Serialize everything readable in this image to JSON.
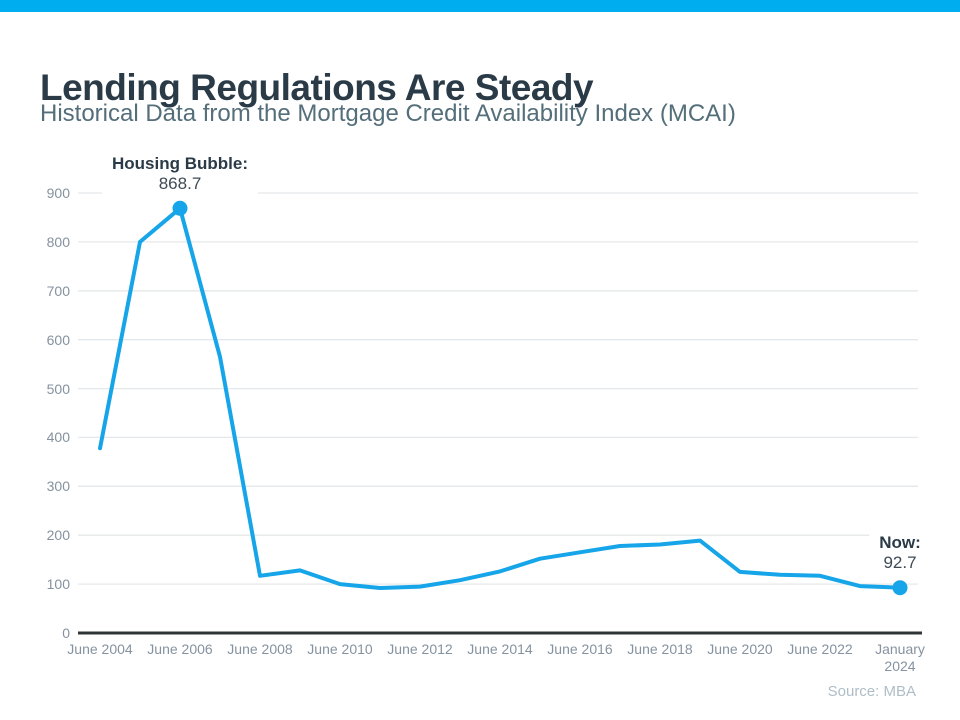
{
  "page": {
    "title": "Lending Regulations Are Steady",
    "subtitle": "Historical Data from the Mortgage Credit Availability Index (MCAI)",
    "source_note": "Source: MBA",
    "accent_bar_color": "#00AEEF"
  },
  "chart_data": {
    "type": "line",
    "title": "Mortgage Credit Availability Index (MCAI)",
    "line_color": "#16A5E9",
    "grid": true,
    "legend": "none",
    "ylim": [
      0,
      900
    ],
    "y_ticks": [
      0,
      100,
      200,
      300,
      400,
      500,
      600,
      700,
      800,
      900
    ],
    "categories": [
      "June 2004",
      "June 2006",
      "June 2008",
      "June 2010",
      "June 2012",
      "June 2014",
      "June 2016",
      "June 2018",
      "June 2020",
      "June 2022",
      "January 2024"
    ],
    "x_tick_labels": [
      [
        "June 2004"
      ],
      [
        "June 2006"
      ],
      [
        "June 2008"
      ],
      [
        "June 2010"
      ],
      [
        "June 2012"
      ],
      [
        "June 2014"
      ],
      [
        "June 2016"
      ],
      [
        "June 2018"
      ],
      [
        "June 2020"
      ],
      [
        "June 2022"
      ],
      [
        "January",
        "2024"
      ]
    ],
    "points": [
      {
        "u": 0,
        "value": 378
      },
      {
        "u": 0.5,
        "value": 800
      },
      {
        "u": 1,
        "value": 868.7
      },
      {
        "u": 1.5,
        "value": 565
      },
      {
        "u": 2,
        "value": 117
      },
      {
        "u": 2.5,
        "value": 128
      },
      {
        "u": 3,
        "value": 100
      },
      {
        "u": 3.5,
        "value": 92
      },
      {
        "u": 4,
        "value": 95
      },
      {
        "u": 4.5,
        "value": 108
      },
      {
        "u": 5,
        "value": 126
      },
      {
        "u": 5.5,
        "value": 152
      },
      {
        "u": 6,
        "value": 165
      },
      {
        "u": 6.5,
        "value": 178
      },
      {
        "u": 7,
        "value": 181
      },
      {
        "u": 7.5,
        "value": 189
      },
      {
        "u": 8,
        "value": 125
      },
      {
        "u": 8.5,
        "value": 119
      },
      {
        "u": 9,
        "value": 117
      },
      {
        "u": 9.5,
        "value": 96
      },
      {
        "u": 10,
        "value": 92.7
      }
    ],
    "annotations": [
      {
        "label": "Housing Bubble:",
        "value": "868.7",
        "u": 1,
        "v": 868.7
      },
      {
        "label": "Now:",
        "value": "92.7",
        "u": 10,
        "v": 92.7
      }
    ]
  }
}
